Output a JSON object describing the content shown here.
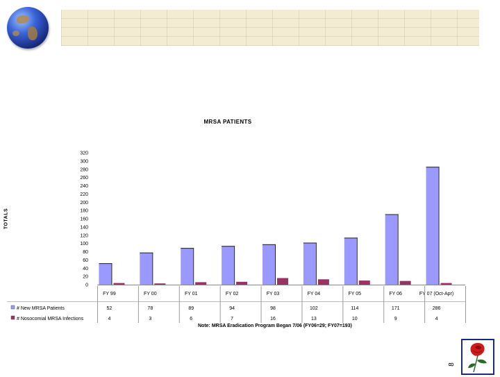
{
  "chart_data": {
    "type": "bar",
    "title": "MRSA PATIENTS",
    "ylabel": "TOTALS",
    "xlabel": "",
    "ylim": [
      0,
      320
    ],
    "yticks": [
      0,
      20,
      40,
      60,
      80,
      100,
      120,
      140,
      160,
      180,
      200,
      220,
      240,
      260,
      280,
      300,
      320
    ],
    "categories": [
      "FY 99",
      "FY 00",
      "FY 01",
      "FY 02",
      "FY 03",
      "FY 04",
      "FY 05",
      "FY 06",
      "FY 07 (Oct-Apr)"
    ],
    "series": [
      {
        "name": "# New MRSA Patients",
        "values": [
          52,
          78,
          89,
          94,
          98,
          102,
          114,
          171,
          286
        ],
        "value_labels": [
          "52",
          "78",
          "89",
          "94",
          "98",
          "102",
          "114",
          "171",
          "286"
        ]
      },
      {
        "name": "# Nosocomial MRSA Infections",
        "values": [
          4,
          3,
          6,
          7,
          16,
          13,
          10,
          9,
          4
        ],
        "value_labels": [
          "4",
          "3",
          "6",
          "7",
          "16",
          "13",
          "10",
          "9",
          "4"
        ]
      }
    ],
    "grid": false,
    "legend": "data-table"
  },
  "colors": {
    "series1": "#9999ff",
    "series2": "#993366",
    "banner": "#f3ecd2",
    "logo_border": "#1b2b7a",
    "rose": "#d11a1a"
  },
  "note": "Note: MRSA Eradication Program Began 7/06 (FY06=29; FY07=193)",
  "page_number": "8",
  "icons": {
    "globe": "globe-icon",
    "logo": "rose-logo"
  }
}
